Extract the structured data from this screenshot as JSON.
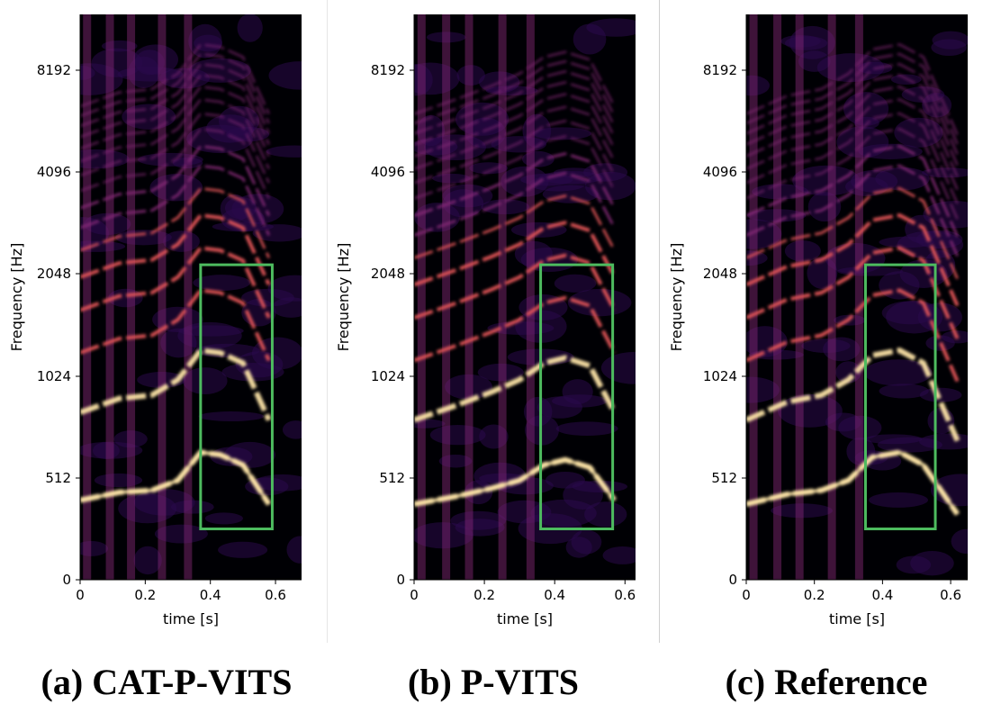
{
  "colors": {
    "background": "#000004",
    "low": "#2a0a4a",
    "mid": "#8a2a7a",
    "high": "#e8575a",
    "peak": "#fde4a6",
    "box": "#4dbb5f"
  },
  "panels": [
    {
      "caption": "(a) CAT-P-VITS"
    },
    {
      "caption": "(b) P-VITS"
    },
    {
      "caption": "(c) Reference"
    }
  ],
  "chart_data": [
    {
      "type": "heatmap",
      "title": "(a) CAT-P-VITS",
      "xlabel": "time [s]",
      "ylabel": "Frequency [Hz]",
      "xlim": [
        0,
        0.68
      ],
      "yscale": "log2-spaced",
      "x_ticks": [
        "0",
        "0.2",
        "0.4",
        "0.6"
      ],
      "y_ticks": [
        "0",
        "512",
        "1024",
        "2048",
        "4096",
        "8192"
      ],
      "highlight_box": {
        "t_start": 0.37,
        "t_end": 0.59,
        "f_low": 256,
        "f_high": 2176
      },
      "harmonic_contours_hz": [
        [
          [
            0.0,
            400
          ],
          [
            0.12,
            440
          ],
          [
            0.22,
            450
          ],
          [
            0.3,
            500
          ],
          [
            0.37,
            610
          ],
          [
            0.43,
            600
          ],
          [
            0.5,
            560
          ],
          [
            0.58,
            380
          ]
        ]
      ]
    },
    {
      "type": "heatmap",
      "title": "(b) P-VITS",
      "xlabel": "time [s]",
      "ylabel": "Frequency [Hz]",
      "xlim": [
        0,
        0.63
      ],
      "yscale": "log2-spaced",
      "x_ticks": [
        "0",
        "0.2",
        "0.4",
        "0.6"
      ],
      "y_ticks": [
        "0",
        "512",
        "1024",
        "2048",
        "4096",
        "8192"
      ],
      "highlight_box": {
        "t_start": 0.36,
        "t_end": 0.565,
        "f_low": 256,
        "f_high": 2176
      },
      "harmonic_contours_hz": [
        [
          [
            0.0,
            380
          ],
          [
            0.12,
            420
          ],
          [
            0.22,
            460
          ],
          [
            0.3,
            500
          ],
          [
            0.37,
            560
          ],
          [
            0.43,
            580
          ],
          [
            0.5,
            550
          ],
          [
            0.57,
            400
          ]
        ]
      ]
    },
    {
      "type": "heatmap",
      "title": "(c) Reference",
      "xlabel": "time [s]",
      "ylabel": "Frequency [Hz]",
      "xlim": [
        0,
        0.65
      ],
      "yscale": "log2-spaced",
      "x_ticks": [
        "0",
        "0.2",
        "0.4",
        "0.6"
      ],
      "y_ticks": [
        "0",
        "512",
        "1024",
        "2048",
        "4096",
        "8192"
      ],
      "highlight_box": {
        "t_start": 0.35,
        "t_end": 0.555,
        "f_low": 256,
        "f_high": 2176
      },
      "harmonic_contours_hz": [
        [
          [
            0.0,
            380
          ],
          [
            0.12,
            430
          ],
          [
            0.22,
            450
          ],
          [
            0.3,
            500
          ],
          [
            0.37,
            590
          ],
          [
            0.45,
            610
          ],
          [
            0.52,
            560
          ],
          [
            0.62,
            330
          ]
        ]
      ]
    }
  ]
}
